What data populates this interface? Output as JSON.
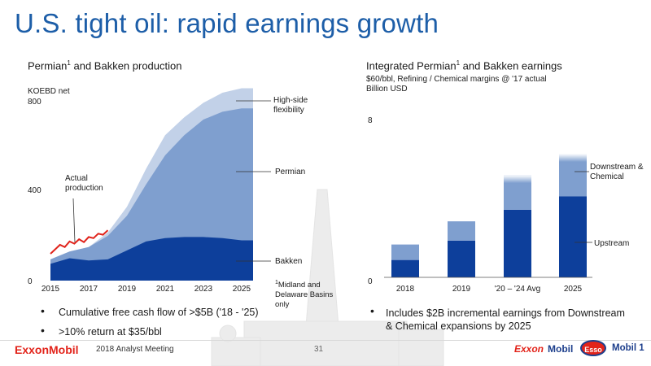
{
  "slide": {
    "title": "U.S. tight oil: rapid earnings growth",
    "footer_event": "2018 Analyst Meeting",
    "page_number": "31",
    "logo_left": "ExxonMobil",
    "brand_logos": [
      "Exxon",
      "Mobil",
      "Esso",
      "Mobil 1"
    ],
    "colors": {
      "title": "#1d5ea8",
      "dark_blue": "#0d3f9b",
      "mid_blue": "#7f9fcf",
      "light_blue": "#c2d1e8",
      "red": "#e0231b",
      "brand_red": "#e2231a"
    }
  },
  "left_panel": {
    "title": "Permian",
    "title_sup": "1",
    "title_rest": " and Bakken production",
    "unit": "KOEBD net",
    "annotation_actual": "Actual production",
    "label_high_side": "High-side flexibility",
    "label_permian": "Permian",
    "label_bakken": "Bakken",
    "footnote_sup": "1",
    "footnote": "Midland and Delaware Basins only",
    "bullets": [
      "Cumulative free cash flow of >$5B ('18 - '25)",
      ">10% return at $35/bbl"
    ]
  },
  "right_panel": {
    "title": "Integrated Permian",
    "title_sup": "1",
    "title_rest": " and Bakken earnings",
    "subtitle": "$60/bbl, Refining / Chemical margins @ '17 actual",
    "unit": "Billion USD",
    "label_downstream": "Downstream & Chemical",
    "label_upstream": "Upstream",
    "bullet": "Includes $2B incremental earnings from Downstream & Chemical expansions by 2025"
  },
  "chart_data": [
    {
      "type": "area",
      "title": "Permian1 and Bakken production",
      "ylabel": "KOEBD net",
      "ylim": [
        0,
        800
      ],
      "yticks": [
        "0",
        "400",
        "800"
      ],
      "xticks": [
        "2015",
        "2017",
        "2019",
        "2021",
        "2023",
        "2025"
      ],
      "x": [
        2015,
        2016,
        2017,
        2018,
        2019,
        2020,
        2021,
        2022,
        2023,
        2024,
        2025
      ],
      "series": [
        {
          "name": "Bakken",
          "values": [
            75,
            100,
            90,
            95,
            135,
            175,
            190,
            195,
            195,
            190,
            180
          ]
        },
        {
          "name": "Permian",
          "values": [
            95,
            130,
            150,
            200,
            290,
            430,
            560,
            650,
            720,
            755,
            770
          ]
        },
        {
          "name": "High-side flexibility",
          "values": [
            95,
            130,
            150,
            215,
            330,
            500,
            650,
            730,
            795,
            840,
            860
          ]
        }
      ],
      "actual_production": {
        "name": "Actual production",
        "x": [
          2015.0,
          2015.25,
          2015.5,
          2015.75,
          2016.0,
          2016.25,
          2016.5,
          2016.75,
          2017.0,
          2017.25,
          2017.5,
          2017.75,
          2018.0
        ],
        "values": [
          120,
          140,
          160,
          150,
          175,
          165,
          185,
          172,
          195,
          190,
          210,
          205,
          225
        ]
      }
    },
    {
      "type": "bar",
      "title": "Integrated Permian1 and Bakken earnings",
      "ylabel": "Billion USD",
      "ylim": [
        0,
        8
      ],
      "yticks": [
        "0",
        "8"
      ],
      "categories": [
        "2018",
        "2019",
        "'20 – '24 Avg",
        "2025"
      ],
      "series": [
        {
          "name": "Upstream",
          "values": [
            0.9,
            1.9,
            3.5,
            4.2
          ]
        },
        {
          "name": "Downstream & Chemical",
          "values": [
            0.8,
            1.0,
            1.8,
            2.2
          ]
        }
      ]
    }
  ]
}
